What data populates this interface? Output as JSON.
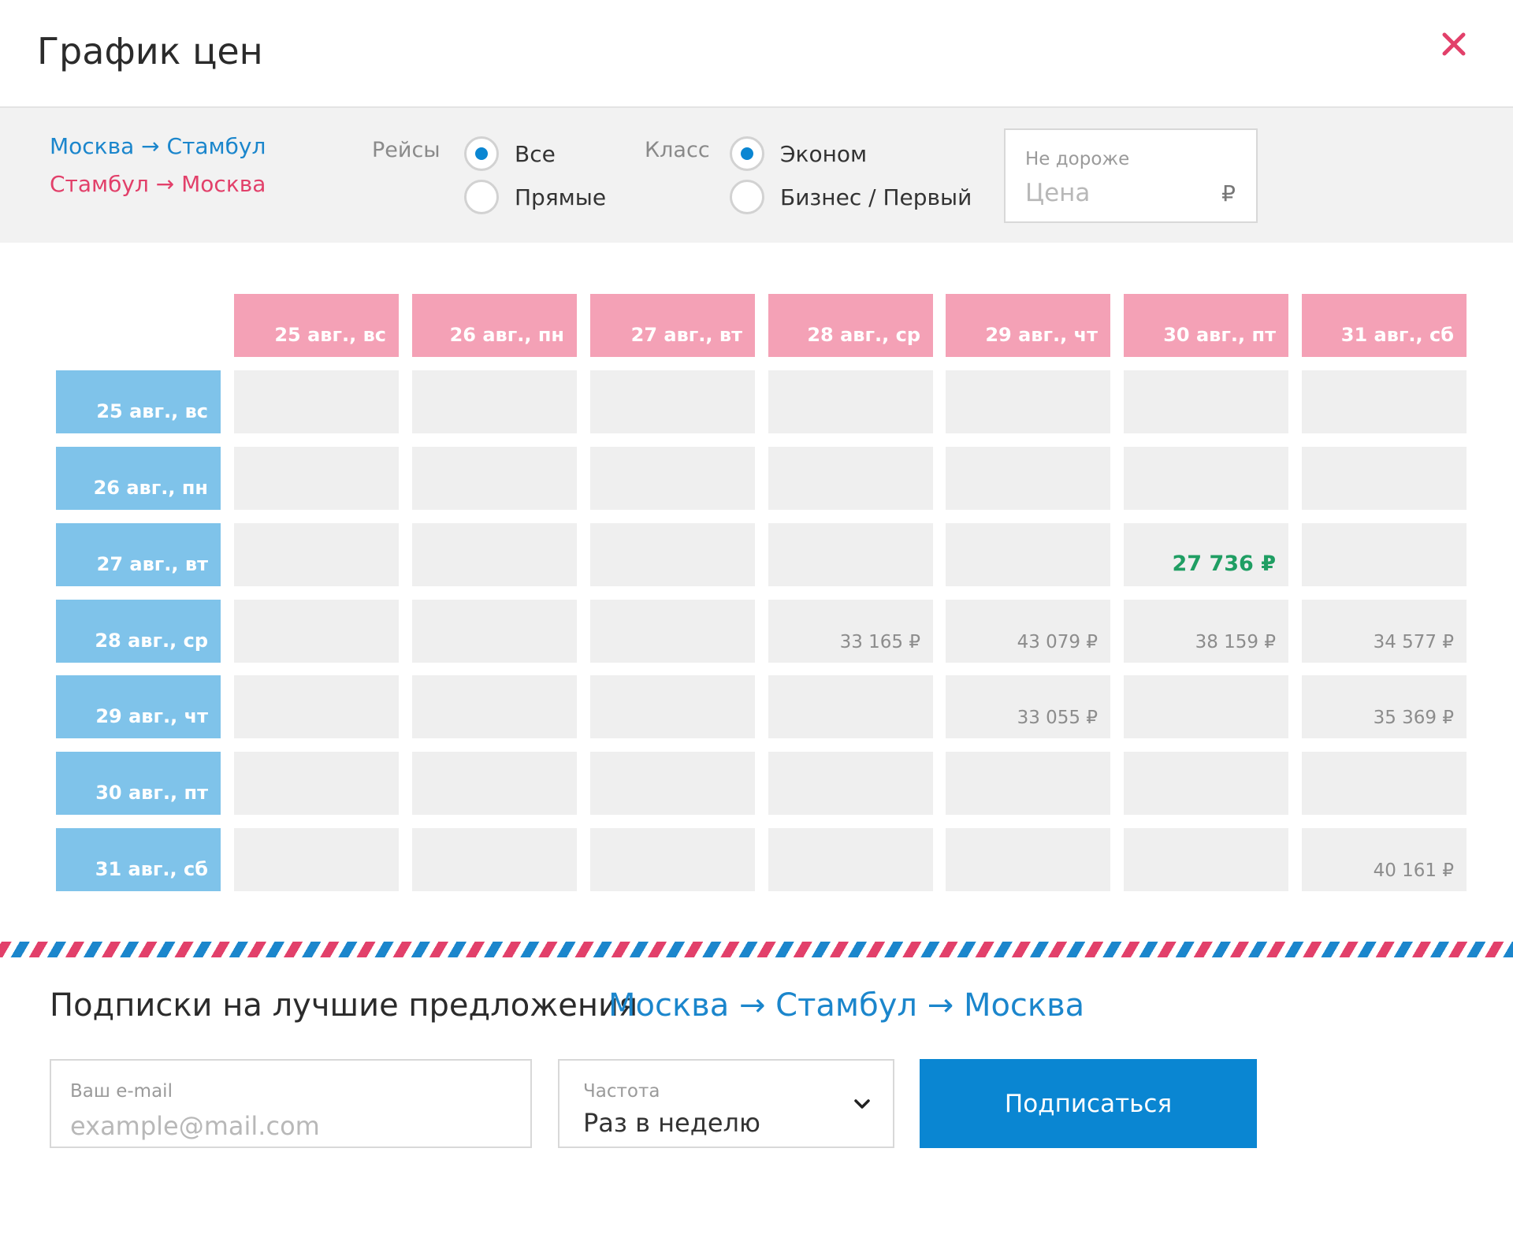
{
  "header": {
    "title": "График цен",
    "close_icon": "close-icon"
  },
  "filters": {
    "route_outbound": "Москва → Стамбул",
    "route_return": "Стамбул → Москва",
    "flights_label": "Рейсы",
    "flights_options": [
      {
        "label": "Все",
        "selected": true
      },
      {
        "label": "Прямые",
        "selected": false
      }
    ],
    "class_label": "Класс",
    "class_options": [
      {
        "label": "Эконом",
        "selected": true
      },
      {
        "label": "Бизнес / Первый",
        "selected": false
      }
    ],
    "max_price": {
      "caption": "Не дороже",
      "placeholder": "Цена",
      "currency": "₽"
    }
  },
  "grid": {
    "columns": [
      "25 авг., вс",
      "26 авг., пн",
      "27 авг., вт",
      "28 авг., ср",
      "29 авг., чт",
      "30 авг., пт",
      "31 авг., сб"
    ],
    "rows": [
      "25 авг., вс",
      "26 авг., пн",
      "27 авг., вт",
      "28 авг., ср",
      "29 авг., чт",
      "30 авг., пт",
      "31 авг., сб"
    ],
    "cells": [
      [
        "",
        "",
        "",
        "",
        "",
        "",
        ""
      ],
      [
        "",
        "",
        "",
        "",
        "",
        "",
        ""
      ],
      [
        "",
        "",
        "",
        "",
        "",
        "27 736 ₽",
        ""
      ],
      [
        "",
        "",
        "",
        "33 165 ₽",
        "43 079 ₽",
        "38 159 ₽",
        "34 577 ₽"
      ],
      [
        "",
        "",
        "",
        "",
        "33 055 ₽",
        "",
        "35 369 ₽"
      ],
      [
        "",
        "",
        "",
        "",
        "",
        "",
        ""
      ],
      [
        "",
        "",
        "",
        "",
        "",
        "",
        "40 161 ₽"
      ]
    ],
    "best_price": "27 736 ₽",
    "colors": {
      "column_header": "#f4a1b6",
      "row_header": "#7fc3ea",
      "cell": "#efefef",
      "best": "#1f9e63"
    }
  },
  "subscription": {
    "title": "Подписки на лучшие предложения",
    "route": "Москва → Стамбул → Москва",
    "email_caption": "Ваш e-mail",
    "email_placeholder": "example@mail.com",
    "frequency_caption": "Частота",
    "frequency_value": "Раз в неделю",
    "subscribe_button": "Подписаться"
  },
  "colors": {
    "accent_blue": "#0a86d2",
    "accent_pink": "#e2406a"
  }
}
